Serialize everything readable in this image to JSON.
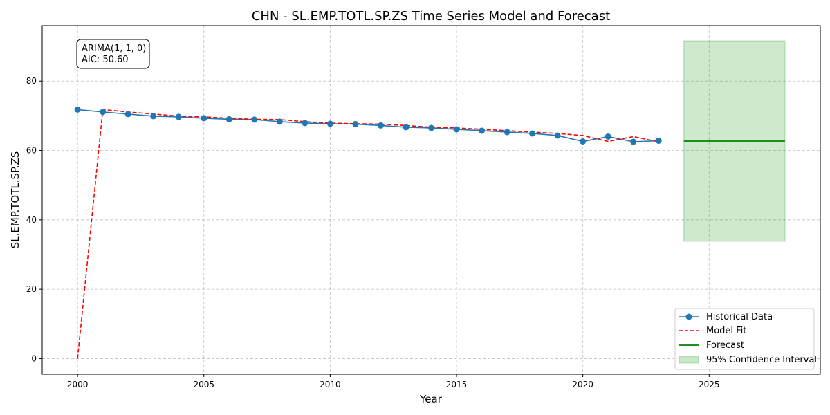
{
  "chart_data": {
    "type": "line",
    "title": "CHN - SL.EMP.TOTL.SP.ZS Time Series Model and Forecast",
    "xlabel": "Year",
    "ylabel": "SL.EMP.TOTL.SP.ZS",
    "xlim": [
      1998.6,
      2029.4
    ],
    "ylim": [
      -4.5,
      96
    ],
    "xticks": [
      2000,
      2005,
      2010,
      2015,
      2020,
      2025
    ],
    "yticks": [
      0,
      20,
      40,
      60,
      80
    ],
    "grid": true,
    "legend_position": "bottom-right",
    "annotation": {
      "lines": [
        "ARIMA(1, 1, 0)",
        "AIC: 50.60"
      ]
    },
    "series": [
      {
        "name": "Historical Data",
        "style": "line-marker",
        "color": "#1f77b4",
        "x": [
          2000,
          2001,
          2002,
          2003,
          2004,
          2005,
          2006,
          2007,
          2008,
          2009,
          2010,
          2011,
          2012,
          2013,
          2014,
          2015,
          2016,
          2017,
          2018,
          2019,
          2020,
          2021,
          2022,
          2023
        ],
        "y": [
          71.8,
          71.1,
          70.5,
          69.9,
          69.7,
          69.3,
          69.0,
          68.9,
          68.3,
          67.9,
          67.7,
          67.6,
          67.2,
          66.7,
          66.5,
          66.1,
          65.7,
          65.3,
          64.9,
          64.3,
          62.6,
          64.0,
          62.5,
          62.8
        ]
      },
      {
        "name": "Model Fit",
        "style": "dashed",
        "color": "#ff0000",
        "x": [
          2000,
          2001,
          2002,
          2003,
          2004,
          2005,
          2006,
          2007,
          2008,
          2009,
          2010,
          2011,
          2012,
          2013,
          2014,
          2015,
          2016,
          2017,
          2018,
          2019,
          2020,
          2021,
          2022,
          2023
        ],
        "y": [
          0,
          71.8,
          71.1,
          70.5,
          69.9,
          69.7,
          69.3,
          69.0,
          68.9,
          68.3,
          67.9,
          67.7,
          67.6,
          67.2,
          66.7,
          66.5,
          66.1,
          65.7,
          65.3,
          64.9,
          64.3,
          62.6,
          64.0,
          62.5
        ]
      },
      {
        "name": "Forecast",
        "style": "solid",
        "color": "#008000",
        "x": [
          2024,
          2025,
          2026,
          2027,
          2028
        ],
        "y": [
          62.7,
          62.7,
          62.7,
          62.7,
          62.7
        ]
      }
    ],
    "confidence_interval": {
      "name": "95% Confidence Interval",
      "color": "#2ca02c",
      "x": [
        2024,
        2025,
        2026,
        2027,
        2028
      ],
      "lower": [
        33.8,
        33.8,
        33.8,
        33.8,
        33.8
      ],
      "upper": [
        91.6,
        91.6,
        91.6,
        91.6,
        91.6
      ]
    }
  }
}
